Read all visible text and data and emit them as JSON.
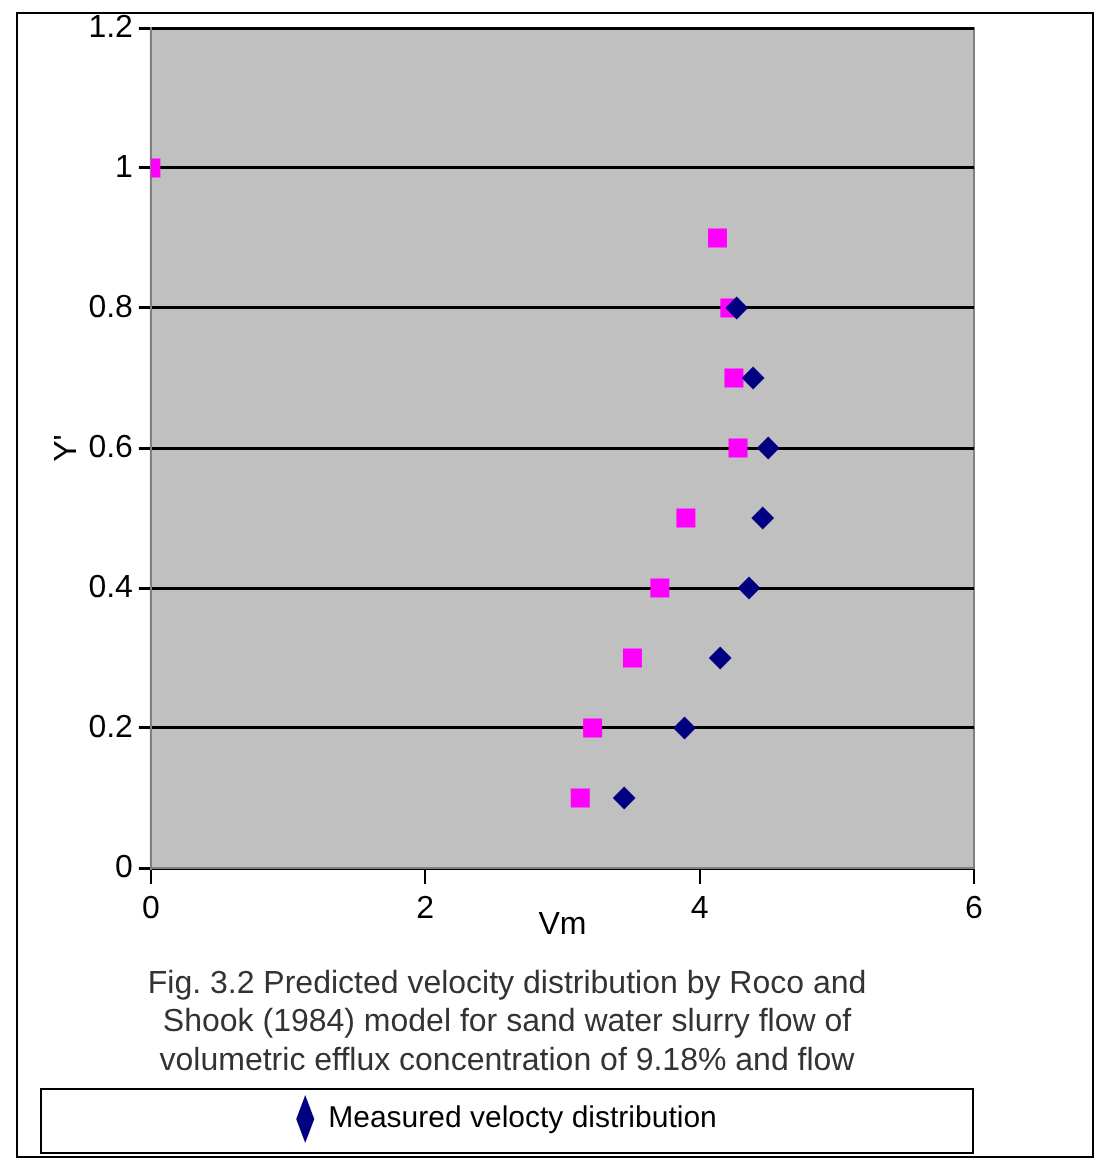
{
  "chart_data": {
    "type": "scatter",
    "title": "Fig. 3.2 Predicted velocity distribution by Roco and Shook (1984) model for sand water slurry flow of volumetric efflux concentration of 9.18% and flow",
    "xlabel": "Vm",
    "ylabel": "Y'",
    "series": [
      {
        "name": "Measured velocty distribution",
        "color": "#000080",
        "marker": "diamond",
        "x": [
          3.45,
          3.89,
          4.15,
          4.36,
          4.46,
          4.5,
          4.39,
          4.27
        ],
        "values": [
          0.1,
          0.2,
          0.3,
          0.4,
          0.5,
          0.6,
          0.7,
          0.8
        ]
      },
      {
        "color": "#ff00ff",
        "marker": "square",
        "x": [
          3.13,
          3.22,
          3.51,
          3.71,
          3.9,
          4.28,
          4.25,
          4.22,
          4.13,
          0
        ],
        "values": [
          0.1,
          0.2,
          0.3,
          0.4,
          0.5,
          0.6,
          0.7,
          0.8,
          0.9,
          1
        ]
      }
    ],
    "xlim": [
      0,
      6
    ],
    "xticks": [
      0,
      2,
      4,
      6
    ],
    "ylim": [
      0,
      1.2
    ],
    "yticks": [
      0,
      0.2,
      0.4,
      0.6,
      0.8,
      1,
      1.2
    ],
    "grid": "y",
    "legend": "bottom"
  }
}
